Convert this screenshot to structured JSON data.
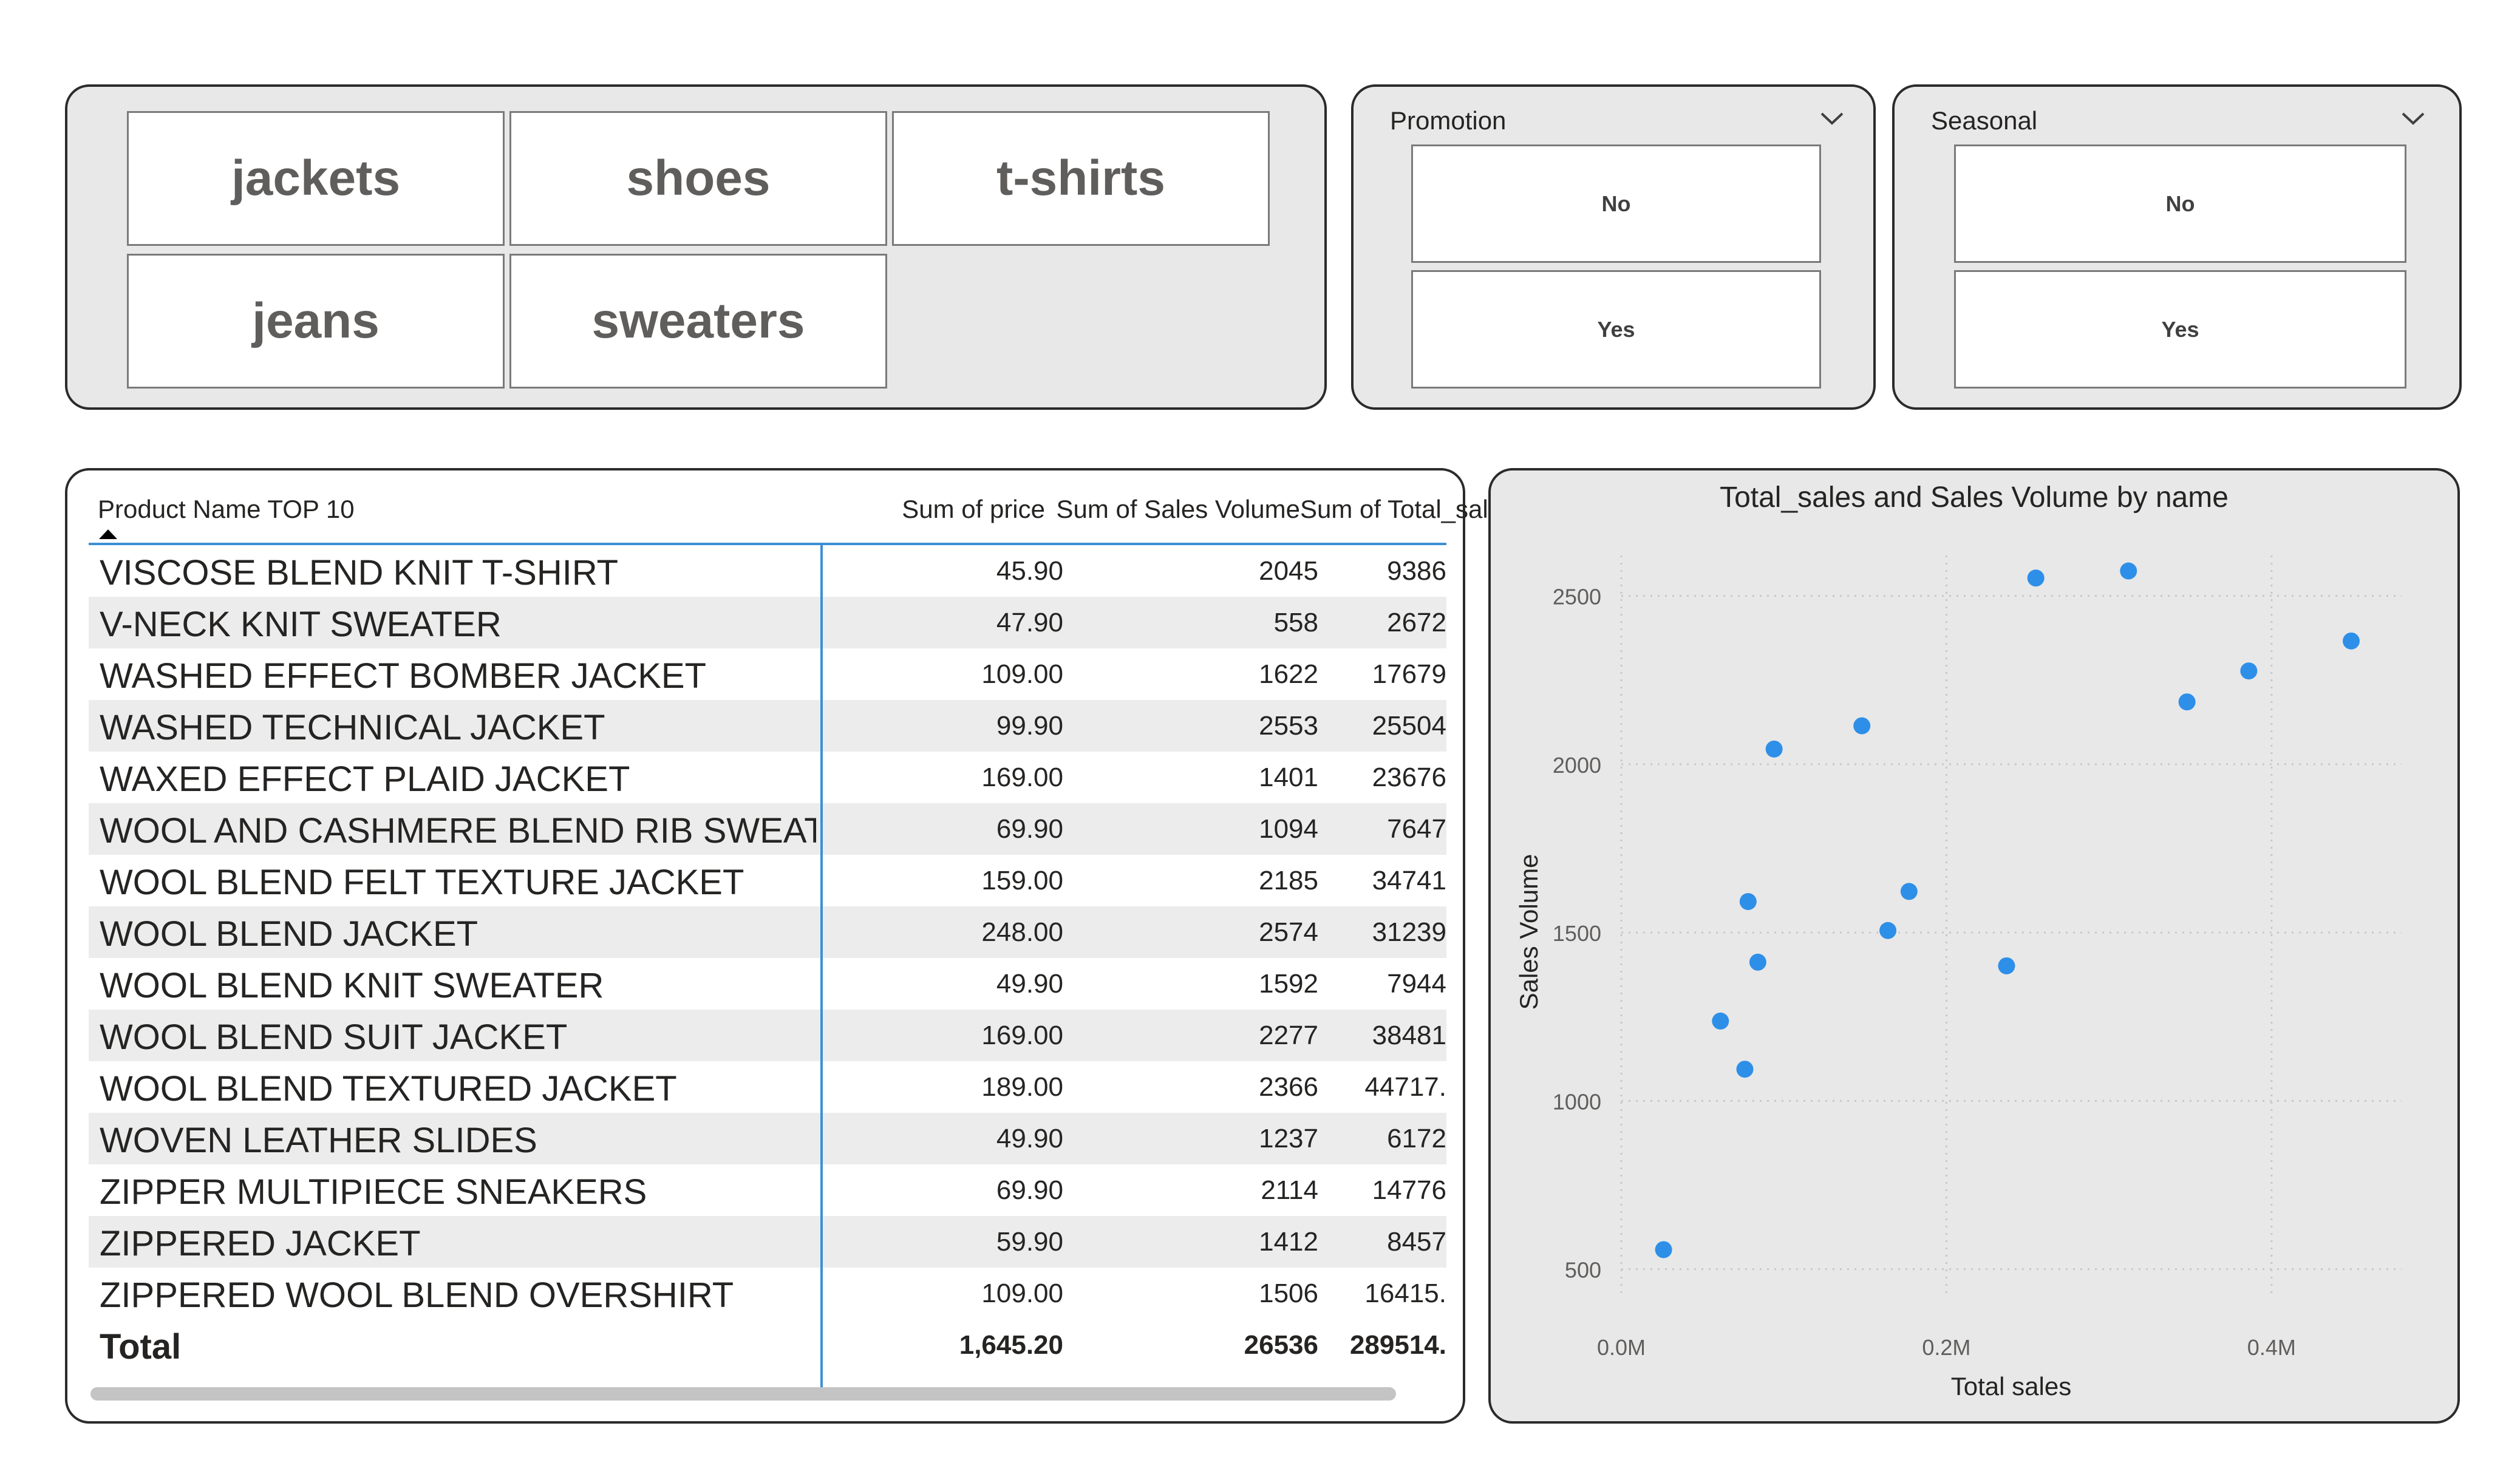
{
  "category_slicer": {
    "items": [
      "jackets",
      "shoes",
      "t-shirts",
      "jeans",
      "sweaters"
    ]
  },
  "promotion_slicer": {
    "title": "Promotion",
    "options": [
      "No",
      "Yes"
    ],
    "icon": "chevron-down-icon"
  },
  "seasonal_slicer": {
    "title": "Seasonal",
    "options": [
      "No",
      "Yes"
    ],
    "icon": "chevron-down-icon"
  },
  "table": {
    "headers": [
      "Product Name TOP 10",
      "Sum of price",
      "Sum of Sales Volume",
      "Sum of Total_sale"
    ],
    "sort_icon": "sort-ascending-icon",
    "rows": [
      [
        "VISCOSE BLEND KNIT T-SHIRT",
        "45.90",
        "2045",
        "9386"
      ],
      [
        "V-NECK KNIT SWEATER",
        "47.90",
        "558",
        "2672"
      ],
      [
        "WASHED EFFECT BOMBER JACKET",
        "109.00",
        "1622",
        "17679"
      ],
      [
        "WASHED TECHNICAL JACKET",
        "99.90",
        "2553",
        "25504"
      ],
      [
        "WAXED EFFECT PLAID JACKET",
        "169.00",
        "1401",
        "23676"
      ],
      [
        "WOOL AND CASHMERE BLEND RIB SWEATER",
        "69.90",
        "1094",
        "7647"
      ],
      [
        "WOOL BLEND FELT TEXTURE JACKET",
        "159.00",
        "2185",
        "34741"
      ],
      [
        "WOOL BLEND JACKET",
        "248.00",
        "2574",
        "31239"
      ],
      [
        "WOOL BLEND KNIT SWEATER",
        "49.90",
        "1592",
        "7944"
      ],
      [
        "WOOL BLEND SUIT JACKET",
        "169.00",
        "2277",
        "38481"
      ],
      [
        "WOOL BLEND TEXTURED JACKET",
        "189.00",
        "2366",
        "44717."
      ],
      [
        "WOVEN LEATHER SLIDES",
        "49.90",
        "1237",
        "6172"
      ],
      [
        "ZIPPER MULTIPIECE SNEAKERS",
        "69.90",
        "2114",
        "14776"
      ],
      [
        "ZIPPERED JACKET",
        "59.90",
        "1412",
        "8457"
      ],
      [
        "ZIPPERED WOOL BLEND OVERSHIRT",
        "109.00",
        "1506",
        "16415."
      ]
    ],
    "total": [
      "Total",
      "1,645.20",
      "26536",
      "289514."
    ]
  },
  "chart_data": {
    "type": "scatter",
    "title": "Total_sales and Sales Volume by name",
    "xlabel": "Total sales",
    "ylabel": "Sales Volume",
    "xlim": [
      0,
      480000
    ],
    "ylim": [
      420,
      2620
    ],
    "xticks": [
      0,
      200000,
      400000
    ],
    "xtick_labels": [
      "0.0M",
      "0.2M",
      "0.4M"
    ],
    "yticks": [
      500,
      1000,
      1500,
      2000,
      2500
    ],
    "ytick_labels": [
      "500",
      "1000",
      "1500",
      "2000",
      "2500"
    ],
    "grid": true,
    "color": "#2e8fe8",
    "points": [
      {
        "x": 26000,
        "y": 558
      },
      {
        "x": 61000,
        "y": 1237
      },
      {
        "x": 76000,
        "y": 1094
      },
      {
        "x": 78000,
        "y": 1592
      },
      {
        "x": 84000,
        "y": 1412
      },
      {
        "x": 94000,
        "y": 2045
      },
      {
        "x": 148000,
        "y": 2114
      },
      {
        "x": 164000,
        "y": 1506
      },
      {
        "x": 177000,
        "y": 1622
      },
      {
        "x": 237000,
        "y": 1401
      },
      {
        "x": 255000,
        "y": 2553
      },
      {
        "x": 312000,
        "y": 2574
      },
      {
        "x": 348000,
        "y": 2185
      },
      {
        "x": 386000,
        "y": 2277
      },
      {
        "x": 449000,
        "y": 2366
      }
    ]
  }
}
